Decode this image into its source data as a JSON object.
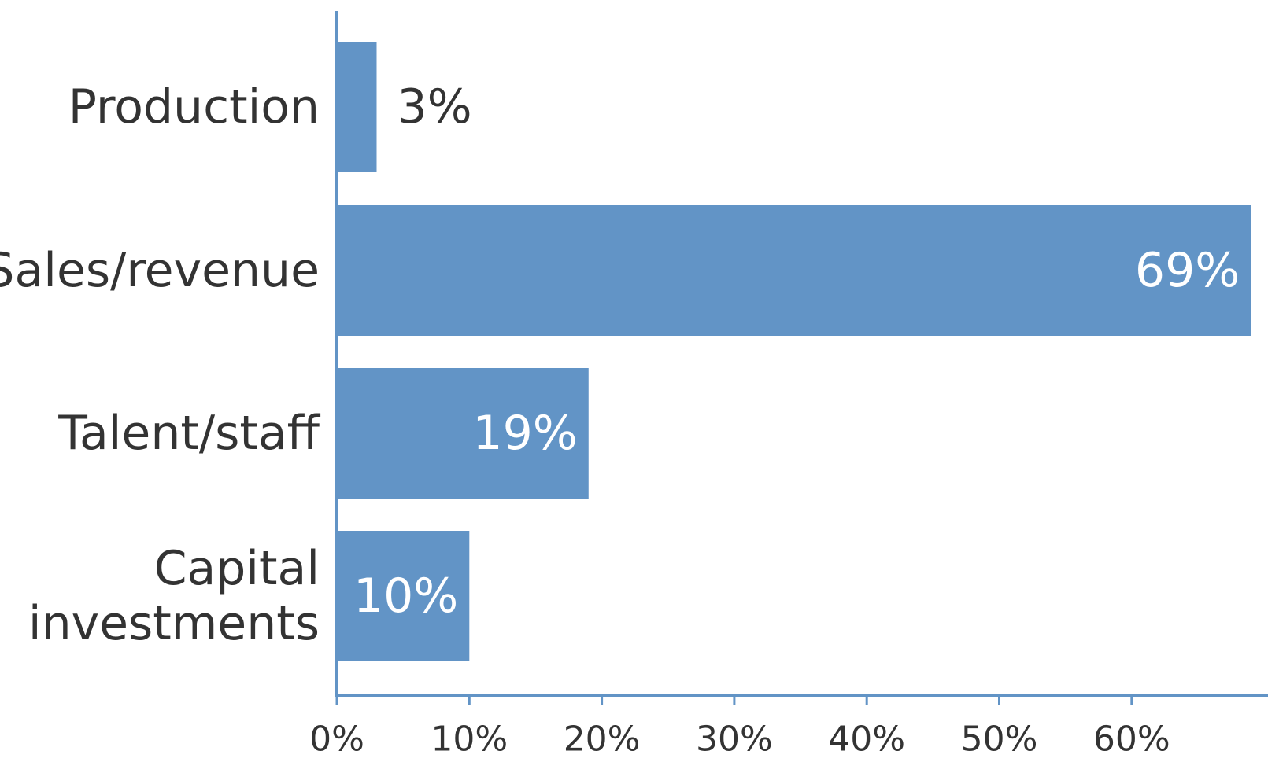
{
  "chart_data": {
    "type": "bar",
    "orientation": "horizontal",
    "title": "",
    "xlabel": "",
    "ylabel": "",
    "categories": [
      [
        "Production"
      ],
      [
        "Sales/revenue"
      ],
      [
        "Talent/staff"
      ],
      [
        "Capital",
        "investments"
      ]
    ],
    "values": [
      3,
      69,
      19,
      10
    ],
    "value_labels": [
      "3%",
      "69%",
      "19%",
      "10%"
    ],
    "xlim": [
      0,
      69
    ],
    "x_ticks": [
      0,
      10,
      20,
      30,
      40,
      50,
      60
    ],
    "x_tick_labels": [
      "0%",
      "10%",
      "20%",
      "30%",
      "40%",
      "50%",
      "60%"
    ],
    "grid": false,
    "legend": "none",
    "colors": {
      "bar": "#6294c6",
      "axis": "#6294c6",
      "text": "#333333",
      "label_inside": "#ffffff"
    }
  }
}
